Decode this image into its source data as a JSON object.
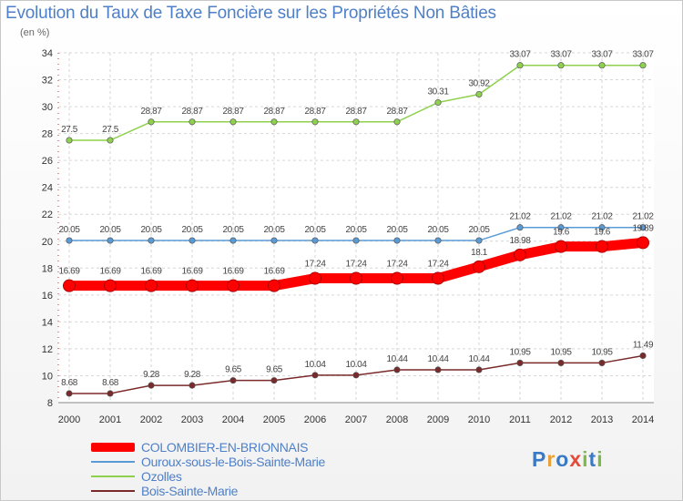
{
  "header": {
    "title": "Evolution du Taux de Taxe Foncière sur les Propriétés Non Bâties",
    "unit": "(en %)"
  },
  "logo": {
    "text": "Proxiti",
    "letters": [
      {
        "ch": "P",
        "color": "#3a79c4"
      },
      {
        "ch": "r",
        "color": "#e8a23a"
      },
      {
        "ch": "o",
        "color": "#3a79c4"
      },
      {
        "ch": "x",
        "color": "#e24b3a"
      },
      {
        "ch": "i",
        "color": "#7ab94a"
      },
      {
        "ch": "t",
        "color": "#3a79c4"
      },
      {
        "ch": "i",
        "color": "#7ab94a"
      }
    ]
  },
  "chart_data": {
    "type": "line",
    "x": [
      2000,
      2001,
      2002,
      2003,
      2004,
      2005,
      2006,
      2007,
      2008,
      2009,
      2010,
      2011,
      2012,
      2013,
      2014
    ],
    "ylim": [
      8,
      34
    ],
    "yticks": [
      8,
      10,
      12,
      14,
      16,
      18,
      20,
      22,
      24,
      26,
      28,
      30,
      32,
      34
    ],
    "grid": true,
    "legend_position": "bottom-left",
    "series": [
      {
        "name": "COLOMBIER-EN-BRIONNAIS",
        "color": "#ff0000",
        "highlight": true,
        "values": [
          16.69,
          16.69,
          16.69,
          16.69,
          16.69,
          16.69,
          17.24,
          17.24,
          17.24,
          17.24,
          18.1,
          18.98,
          19.6,
          19.6,
          19.89
        ],
        "labels": [
          "16.69",
          "16.69",
          "16.69",
          "16.69",
          "16.69",
          "16.69",
          "17.24",
          "17.24",
          "17.24",
          "17.24",
          "18.1",
          "18.98",
          "19.6",
          "19.6",
          "19.89"
        ]
      },
      {
        "name": "Ouroux-sous-le-Bois-Sainte-Marie",
        "color": "#5b9bd5",
        "highlight": false,
        "values": [
          20.05,
          20.05,
          20.05,
          20.05,
          20.05,
          20.05,
          20.05,
          20.05,
          20.05,
          20.05,
          20.05,
          21.02,
          21.02,
          21.02,
          21.02
        ],
        "labels": [
          "20.05",
          "20.05",
          "20.05",
          "20.05",
          "20.05",
          "20.05",
          "20.05",
          "20.05",
          "20.05",
          "20.05",
          "20.05",
          "21.02",
          "21.02",
          "21.02",
          "21.02"
        ]
      },
      {
        "name": "Ozolles",
        "color": "#8fd14f",
        "highlight": false,
        "values": [
          27.5,
          27.5,
          28.87,
          28.87,
          28.87,
          28.87,
          28.87,
          28.87,
          28.87,
          30.31,
          30.92,
          33.07,
          33.07,
          33.07,
          33.07
        ],
        "labels": [
          "27.5",
          "27.5",
          "28.87",
          "28.87",
          "28.87",
          "28.87",
          "28.87",
          "28.87",
          "28.87",
          "30.31",
          "30.92",
          "33.07",
          "33.07",
          "33.07",
          "33.07"
        ]
      },
      {
        "name": "Bois-Sainte-Marie",
        "color": "#7a2a2a",
        "highlight": false,
        "values": [
          8.68,
          8.68,
          9.28,
          9.28,
          9.65,
          9.65,
          10.04,
          10.04,
          10.44,
          10.44,
          10.44,
          10.95,
          10.95,
          10.95,
          11.49
        ],
        "labels": [
          "8.68",
          "8.68",
          "9.28",
          "9.28",
          "9.65",
          "9.65",
          "10.04",
          "10.04",
          "10.44",
          "10.44",
          "10.44",
          "10.95",
          "10.95",
          "10.95",
          "11.49"
        ]
      }
    ]
  }
}
